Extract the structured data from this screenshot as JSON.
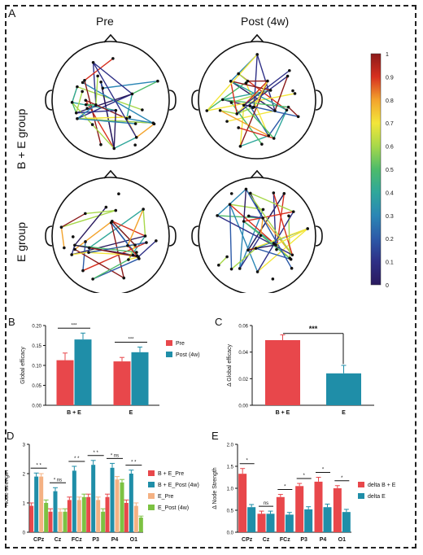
{
  "panel_A": {
    "letter": "A",
    "col_titles": [
      "Pre",
      "Post (4w)"
    ],
    "row_titles": [
      "B + E group",
      "E group"
    ],
    "colorbar": {
      "ticks": [
        "1",
        "0.9",
        "0.8",
        "0.7",
        "0.6",
        "0.5",
        "0.4",
        "0.3",
        "0.2",
        "0.1",
        "0"
      ],
      "colors": [
        "#8b1a1a",
        "#d7301f",
        "#f3a32c",
        "#f3e63a",
        "#a7d84a",
        "#4dbb6a",
        "#2fa79b",
        "#2b86b5",
        "#2c5aa8",
        "#2e2f86",
        "#2a1a5e"
      ]
    }
  },
  "chart_data": [
    {
      "panel": "B",
      "type": "bar",
      "categories": [
        "B + E",
        "E"
      ],
      "series": [
        {
          "name": "Pre",
          "values": [
            0.113,
            0.11
          ],
          "errors": [
            0.018,
            0.01
          ],
          "color": "#e8474b"
        },
        {
          "name": "Post (4w)",
          "values": [
            0.165,
            0.133
          ],
          "errors": [
            0.016,
            0.013
          ],
          "color": "#1f8ea8"
        }
      ],
      "ylabel": "Global efficacy",
      "ylim": [
        0,
        0.2
      ],
      "yticks": [
        "0.00",
        "0.05",
        "0.10",
        "0.15",
        "0.20"
      ],
      "sig": [
        "***",
        "***"
      ],
      "legend": "right"
    },
    {
      "panel": "C",
      "type": "bar",
      "categories": [
        "B + E",
        "E"
      ],
      "series": [
        {
          "name": "",
          "values": [
            0.049,
            0.024
          ],
          "errors": [
            0.004,
            0.006
          ],
          "colors": [
            "#e8474b",
            "#1f8ea8"
          ]
        }
      ],
      "ylabel": "Δ Global efficacy",
      "ylim": [
        0,
        0.06
      ],
      "yticks": [
        "0.00",
        "0.02",
        "0.04",
        "0.06"
      ],
      "sig": [
        "***"
      ]
    },
    {
      "panel": "D",
      "type": "bar",
      "categories": [
        "CPz",
        "Cz",
        "FCz",
        "P3",
        "P4",
        "O1"
      ],
      "series": [
        {
          "name": "B + E_Pre",
          "values": [
            0.9,
            0.7,
            1.1,
            1.2,
            1.2,
            1.0
          ],
          "errors": [
            0.1,
            0.1,
            0.1,
            0.1,
            0.1,
            0.1
          ],
          "color": "#e8474b"
        },
        {
          "name": "B + E_Post (4w)",
          "values": [
            1.9,
            1.4,
            2.1,
            2.3,
            2.2,
            2.0
          ],
          "errors": [
            0.12,
            0.12,
            0.15,
            0.15,
            0.15,
            0.12
          ],
          "color": "#1f8ea8"
        },
        {
          "name": "E_Pre",
          "values": [
            1.9,
            0.7,
            1.1,
            1.1,
            1.8,
            0.9
          ],
          "errors": [
            0.1,
            0.1,
            0.1,
            0.1,
            0.1,
            0.1
          ],
          "color": "#f4b183"
        },
        {
          "name": "E_Post (4w)",
          "values": [
            1.0,
            0.7,
            1.2,
            0.7,
            1.7,
            0.5
          ],
          "errors": [
            0.1,
            0.1,
            0.1,
            0.1,
            0.1,
            0.05
          ],
          "color": "#7cc242"
        }
      ],
      "ylabel": "Node strength",
      "ylim": [
        0,
        3
      ],
      "yticks": [
        "0",
        "1",
        "2",
        "3"
      ],
      "sig": [
        "* *",
        "* ns",
        "* *",
        "* *",
        "* ns",
        "* *"
      ],
      "legend": "right"
    },
    {
      "panel": "E",
      "type": "bar",
      "categories": [
        "CPz",
        "Cz",
        "FCz",
        "P3",
        "P4",
        "O1"
      ],
      "series": [
        {
          "name": "delta B + E",
          "values": [
            1.33,
            0.42,
            0.8,
            1.05,
            1.15,
            1.0
          ],
          "errors": [
            0.12,
            0.06,
            0.06,
            0.06,
            0.1,
            0.06
          ],
          "color": "#e8474b"
        },
        {
          "name": "delta E",
          "values": [
            0.57,
            0.42,
            0.4,
            0.52,
            0.57,
            0.46
          ],
          "errors": [
            0.06,
            0.06,
            0.05,
            0.06,
            0.07,
            0.06
          ],
          "color": "#1f8ea8"
        }
      ],
      "ylabel": "Δ Node Strength",
      "ylim": [
        0,
        2
      ],
      "yticks": [
        "0.0",
        "0.5",
        "1.0",
        "1.5",
        "2.0"
      ],
      "sig": [
        "*",
        "ns",
        "*",
        "*",
        "*",
        "*"
      ],
      "legend": "right"
    }
  ]
}
